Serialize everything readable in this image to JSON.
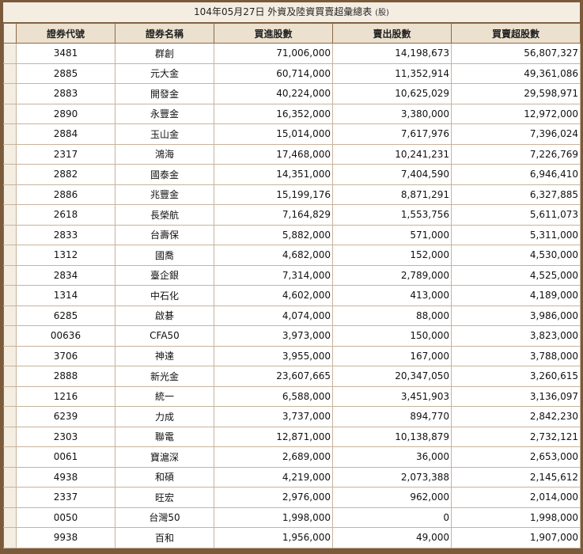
{
  "title": {
    "main": "104年05月27日 外資及陸資買賣超彙總表",
    "unit": "(股)"
  },
  "headers": [
    "證券代號",
    "證券名稱",
    "買進股數",
    "賣出股數",
    "買賣超股數"
  ],
  "rows": [
    [
      "3481",
      "群創",
      "71,006,000",
      "14,198,673",
      "56,807,327"
    ],
    [
      "2885",
      "元大金",
      "60,714,000",
      "11,352,914",
      "49,361,086"
    ],
    [
      "2883",
      "開發金",
      "40,224,000",
      "10,625,029",
      "29,598,971"
    ],
    [
      "2890",
      "永豐金",
      "16,352,000",
      "3,380,000",
      "12,972,000"
    ],
    [
      "2884",
      "玉山金",
      "15,014,000",
      "7,617,976",
      "7,396,024"
    ],
    [
      "2317",
      "鴻海",
      "17,468,000",
      "10,241,231",
      "7,226,769"
    ],
    [
      "2882",
      "國泰金",
      "14,351,000",
      "7,404,590",
      "6,946,410"
    ],
    [
      "2886",
      "兆豐金",
      "15,199,176",
      "8,871,291",
      "6,327,885"
    ],
    [
      "2618",
      "長榮航",
      "7,164,829",
      "1,553,756",
      "5,611,073"
    ],
    [
      "2833",
      "台壽保",
      "5,882,000",
      "571,000",
      "5,311,000"
    ],
    [
      "1312",
      "國喬",
      "4,682,000",
      "152,000",
      "4,530,000"
    ],
    [
      "2834",
      "臺企銀",
      "7,314,000",
      "2,789,000",
      "4,525,000"
    ],
    [
      "1314",
      "中石化",
      "4,602,000",
      "413,000",
      "4,189,000"
    ],
    [
      "6285",
      "啟碁",
      "4,074,000",
      "88,000",
      "3,986,000"
    ],
    [
      "00636",
      "CFA50",
      "3,973,000",
      "150,000",
      "3,823,000"
    ],
    [
      "3706",
      "神達",
      "3,955,000",
      "167,000",
      "3,788,000"
    ],
    [
      "2888",
      "新光金",
      "23,607,665",
      "20,347,050",
      "3,260,615"
    ],
    [
      "1216",
      "統一",
      "6,588,000",
      "3,451,903",
      "3,136,097"
    ],
    [
      "6239",
      "力成",
      "3,737,000",
      "894,770",
      "2,842,230"
    ],
    [
      "2303",
      "聯電",
      "12,871,000",
      "10,138,879",
      "2,732,121"
    ],
    [
      "0061",
      "寶滬深",
      "2,689,000",
      "36,000",
      "2,653,000"
    ],
    [
      "4938",
      "和碩",
      "4,219,000",
      "2,073,388",
      "2,145,612"
    ],
    [
      "2337",
      "旺宏",
      "2,976,000",
      "962,000",
      "2,014,000"
    ],
    [
      "0050",
      "台灣50",
      "1,998,000",
      "0",
      "1,998,000"
    ],
    [
      "9938",
      "百和",
      "1,956,000",
      "49,000",
      "1,907,000"
    ]
  ]
}
